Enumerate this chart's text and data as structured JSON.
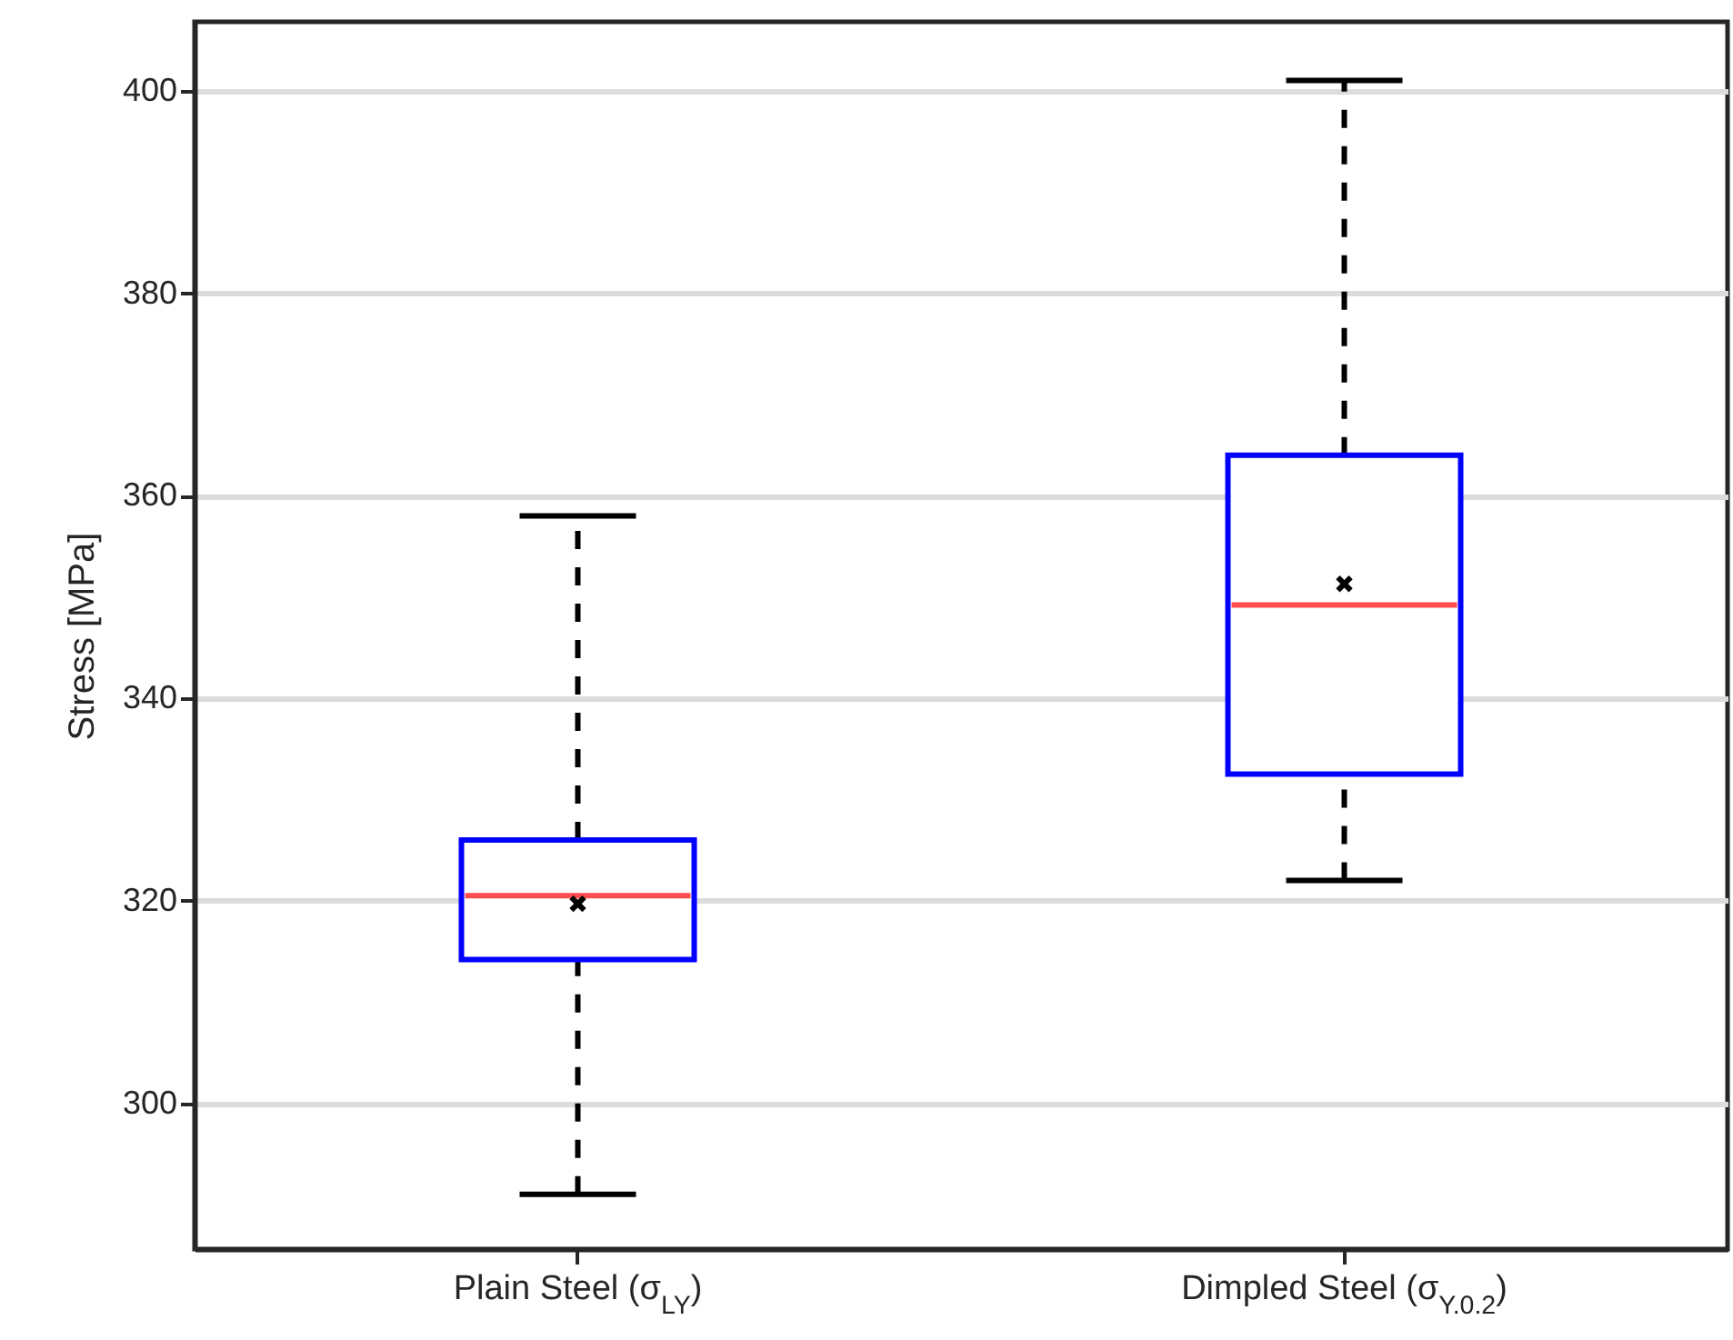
{
  "chart_data": {
    "type": "box",
    "ylabel": "Stress [MPa]",
    "categories": [
      "Plain Steel (σ$_{LY}$)",
      "Dimpled Steel (σ$_{Y.0.2}$)"
    ],
    "boxes": [
      {
        "low": 291,
        "q1": 314.2,
        "median": 320.5,
        "q3": 326,
        "high": 358,
        "mean": 319.7
      },
      {
        "low": 322,
        "q1": 332.5,
        "median": 349.2,
        "q3": 364,
        "high": 401,
        "mean": 351.3
      }
    ],
    "colors": [
      "#0000ff",
      "#0000ff"
    ],
    "ylim": [
      285.6,
      406.8
    ],
    "yticks": [
      300,
      320,
      340,
      360,
      380,
      400
    ],
    "grid": "y"
  }
}
